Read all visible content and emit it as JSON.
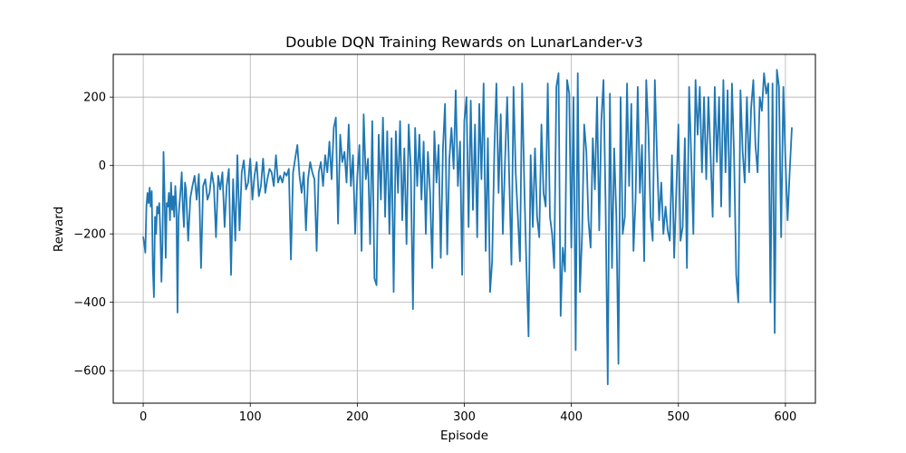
{
  "chart_data": {
    "type": "line",
    "title": "Double DQN Training Rewards on LunarLander-v3",
    "xlabel": "Episode",
    "ylabel": "Reward",
    "xlim": [
      -28,
      628
    ],
    "ylim": [
      -695,
      325
    ],
    "xticks": [
      0,
      100,
      200,
      300,
      400,
      500,
      600
    ],
    "xtick_labels": [
      "0",
      "100",
      "200",
      "300",
      "400",
      "500",
      "600"
    ],
    "yticks": [
      -600,
      -400,
      -200,
      0,
      200
    ],
    "ytick_labels": [
      "−600",
      "−400",
      "−200",
      "0",
      "200"
    ],
    "grid": true,
    "series": [
      {
        "name": "Reward",
        "color": "#1f77b4",
        "keypoints": [
          [
            0,
            -210
          ],
          [
            1,
            -230
          ],
          [
            2,
            -255
          ],
          [
            3,
            -120
          ],
          [
            4,
            -80
          ],
          [
            5,
            -110
          ],
          [
            6,
            -65
          ],
          [
            7,
            -120
          ],
          [
            8,
            -75
          ],
          [
            9,
            -300
          ],
          [
            10,
            -385
          ],
          [
            11,
            -150
          ],
          [
            12,
            -200
          ],
          [
            13,
            -120
          ],
          [
            14,
            -140
          ],
          [
            15,
            -110
          ],
          [
            16,
            -200
          ],
          [
            17,
            -340
          ],
          [
            18,
            -230
          ],
          [
            19,
            40
          ],
          [
            20,
            -90
          ],
          [
            21,
            -270
          ],
          [
            22,
            -110
          ],
          [
            23,
            -120
          ],
          [
            24,
            -80
          ],
          [
            25,
            -160
          ],
          [
            26,
            -50
          ],
          [
            27,
            -130
          ],
          [
            28,
            -90
          ],
          [
            29,
            -150
          ],
          [
            30,
            -60
          ],
          [
            31,
            -120
          ],
          [
            32,
            -430
          ],
          [
            33,
            -150
          ],
          [
            34,
            -110
          ],
          [
            35,
            -70
          ],
          [
            36,
            -20
          ],
          [
            37,
            -120
          ],
          [
            38,
            -180
          ],
          [
            39,
            -50
          ],
          [
            40,
            -70
          ],
          [
            42,
            -220
          ],
          [
            44,
            -95
          ],
          [
            46,
            -60
          ],
          [
            48,
            -30
          ],
          [
            50,
            -100
          ],
          [
            52,
            -25
          ],
          [
            54,
            -300
          ],
          [
            56,
            -60
          ],
          [
            58,
            -40
          ],
          [
            60,
            -100
          ],
          [
            62,
            -80
          ],
          [
            64,
            -20
          ],
          [
            66,
            -60
          ],
          [
            68,
            -210
          ],
          [
            70,
            -30
          ],
          [
            72,
            -70
          ],
          [
            74,
            -20
          ],
          [
            76,
            -180
          ],
          [
            78,
            -60
          ],
          [
            80,
            -10
          ],
          [
            82,
            -320
          ],
          [
            84,
            -40
          ],
          [
            86,
            -220
          ],
          [
            88,
            30
          ],
          [
            90,
            -190
          ],
          [
            92,
            -20
          ],
          [
            94,
            15
          ],
          [
            96,
            -70
          ],
          [
            98,
            -50
          ],
          [
            100,
            20
          ],
          [
            102,
            -100
          ],
          [
            104,
            -30
          ],
          [
            106,
            10
          ],
          [
            108,
            -90
          ],
          [
            110,
            -60
          ],
          [
            112,
            20
          ],
          [
            114,
            -80
          ],
          [
            116,
            -40
          ],
          [
            118,
            -10
          ],
          [
            120,
            -20
          ],
          [
            122,
            -60
          ],
          [
            124,
            30
          ],
          [
            126,
            -50
          ],
          [
            128,
            -30
          ],
          [
            130,
            -50
          ],
          [
            132,
            -20
          ],
          [
            134,
            -30
          ],
          [
            136,
            -10
          ],
          [
            138,
            -275
          ],
          [
            140,
            -20
          ],
          [
            142,
            20
          ],
          [
            144,
            60
          ],
          [
            146,
            -30
          ],
          [
            148,
            -80
          ],
          [
            150,
            -20
          ],
          [
            152,
            -190
          ],
          [
            154,
            -40
          ],
          [
            156,
            10
          ],
          [
            158,
            -20
          ],
          [
            160,
            -40
          ],
          [
            162,
            -250
          ],
          [
            164,
            -20
          ],
          [
            166,
            10
          ],
          [
            168,
            -60
          ],
          [
            170,
            30
          ],
          [
            172,
            -20
          ],
          [
            174,
            70
          ],
          [
            176,
            -40
          ],
          [
            178,
            110
          ],
          [
            180,
            140
          ],
          [
            182,
            -170
          ],
          [
            184,
            90
          ],
          [
            186,
            10
          ],
          [
            188,
            40
          ],
          [
            190,
            -50
          ],
          [
            192,
            120
          ],
          [
            194,
            -60
          ],
          [
            196,
            30
          ],
          [
            198,
            -200
          ],
          [
            200,
            -30
          ],
          [
            202,
            60
          ],
          [
            204,
            -250
          ],
          [
            206,
            150
          ],
          [
            208,
            -40
          ],
          [
            210,
            20
          ],
          [
            212,
            -230
          ],
          [
            214,
            130
          ],
          [
            216,
            -330
          ],
          [
            218,
            -350
          ],
          [
            220,
            90
          ],
          [
            222,
            -100
          ],
          [
            224,
            140
          ],
          [
            226,
            -150
          ],
          [
            228,
            100
          ],
          [
            230,
            -200
          ],
          [
            232,
            80
          ],
          [
            234,
            -370
          ],
          [
            236,
            100
          ],
          [
            238,
            -80
          ],
          [
            240,
            130
          ],
          [
            242,
            -160
          ],
          [
            244,
            50
          ],
          [
            246,
            -230
          ],
          [
            248,
            120
          ],
          [
            250,
            -10
          ],
          [
            252,
            -420
          ],
          [
            254,
            110
          ],
          [
            256,
            -60
          ],
          [
            258,
            90
          ],
          [
            260,
            -100
          ],
          [
            262,
            70
          ],
          [
            264,
            -200
          ],
          [
            266,
            40
          ],
          [
            268,
            -80
          ],
          [
            270,
            -300
          ],
          [
            272,
            100
          ],
          [
            274,
            -50
          ],
          [
            276,
            60
          ],
          [
            278,
            -270
          ],
          [
            280,
            50
          ],
          [
            282,
            180
          ],
          [
            284,
            -260
          ],
          [
            286,
            20
          ],
          [
            288,
            110
          ],
          [
            290,
            -10
          ],
          [
            292,
            220
          ],
          [
            294,
            -60
          ],
          [
            296,
            70
          ],
          [
            298,
            -320
          ],
          [
            300,
            130
          ],
          [
            302,
            200
          ],
          [
            304,
            -180
          ],
          [
            306,
            190
          ],
          [
            308,
            -130
          ],
          [
            310,
            120
          ],
          [
            312,
            -210
          ],
          [
            314,
            180
          ],
          [
            316,
            -40
          ],
          [
            318,
            240
          ],
          [
            320,
            -250
          ],
          [
            322,
            80
          ],
          [
            324,
            -370
          ],
          [
            326,
            -280
          ],
          [
            328,
            40
          ],
          [
            330,
            240
          ],
          [
            332,
            -80
          ],
          [
            334,
            150
          ],
          [
            336,
            -200
          ],
          [
            338,
            10
          ],
          [
            340,
            200
          ],
          [
            342,
            -40
          ],
          [
            344,
            -290
          ],
          [
            346,
            230
          ],
          [
            348,
            -20
          ],
          [
            350,
            -150
          ],
          [
            352,
            -280
          ],
          [
            354,
            240
          ],
          [
            356,
            -60
          ],
          [
            358,
            -290
          ],
          [
            360,
            -500
          ],
          [
            362,
            30
          ],
          [
            364,
            -180
          ],
          [
            366,
            50
          ],
          [
            368,
            -150
          ],
          [
            370,
            -210
          ],
          [
            372,
            120
          ],
          [
            374,
            -80
          ],
          [
            376,
            -120
          ],
          [
            378,
            240
          ],
          [
            380,
            -150
          ],
          [
            382,
            -200
          ],
          [
            384,
            -300
          ],
          [
            386,
            230
          ],
          [
            388,
            270
          ],
          [
            390,
            -440
          ],
          [
            392,
            -240
          ],
          [
            394,
            -310
          ],
          [
            396,
            250
          ],
          [
            398,
            210
          ],
          [
            400,
            -240
          ],
          [
            402,
            200
          ],
          [
            404,
            -540
          ],
          [
            406,
            270
          ],
          [
            408,
            -370
          ],
          [
            410,
            -200
          ],
          [
            412,
            120
          ],
          [
            414,
            40
          ],
          [
            416,
            -160
          ],
          [
            418,
            -240
          ],
          [
            420,
            80
          ],
          [
            422,
            -70
          ],
          [
            424,
            200
          ],
          [
            426,
            -190
          ],
          [
            428,
            130
          ],
          [
            430,
            250
          ],
          [
            432,
            -110
          ],
          [
            434,
            -640
          ],
          [
            436,
            210
          ],
          [
            438,
            -300
          ],
          [
            440,
            50
          ],
          [
            442,
            -150
          ],
          [
            444,
            -580
          ],
          [
            446,
            200
          ],
          [
            448,
            -200
          ],
          [
            450,
            -150
          ],
          [
            452,
            240
          ],
          [
            454,
            -60
          ],
          [
            456,
            180
          ],
          [
            458,
            -250
          ],
          [
            460,
            -100
          ],
          [
            462,
            230
          ],
          [
            464,
            -80
          ],
          [
            466,
            60
          ],
          [
            468,
            -280
          ],
          [
            470,
            250
          ],
          [
            472,
            100
          ],
          [
            474,
            -150
          ],
          [
            476,
            -220
          ],
          [
            478,
            250
          ],
          [
            480,
            20
          ],
          [
            482,
            -160
          ],
          [
            484,
            -50
          ],
          [
            486,
            -200
          ],
          [
            488,
            -120
          ],
          [
            490,
            -190
          ],
          [
            492,
            -220
          ],
          [
            494,
            30
          ],
          [
            496,
            -270
          ],
          [
            498,
            -80
          ],
          [
            500,
            120
          ],
          [
            502,
            -220
          ],
          [
            504,
            -180
          ],
          [
            506,
            80
          ],
          [
            508,
            -300
          ],
          [
            510,
            230
          ],
          [
            512,
            20
          ],
          [
            514,
            -200
          ],
          [
            516,
            250
          ],
          [
            518,
            90
          ],
          [
            520,
            230
          ],
          [
            522,
            -20
          ],
          [
            524,
            200
          ],
          [
            526,
            -40
          ],
          [
            528,
            200
          ],
          [
            530,
            40
          ],
          [
            532,
            -150
          ],
          [
            534,
            230
          ],
          [
            536,
            10
          ],
          [
            538,
            200
          ],
          [
            540,
            -120
          ],
          [
            542,
            250
          ],
          [
            544,
            -20
          ],
          [
            546,
            220
          ],
          [
            548,
            -150
          ],
          [
            550,
            240
          ],
          [
            552,
            30
          ],
          [
            554,
            -320
          ],
          [
            556,
            -400
          ],
          [
            558,
            220
          ],
          [
            560,
            40
          ],
          [
            562,
            -50
          ],
          [
            564,
            200
          ],
          [
            566,
            -20
          ],
          [
            568,
            170
          ],
          [
            570,
            250
          ],
          [
            572,
            60
          ],
          [
            574,
            -20
          ],
          [
            576,
            200
          ],
          [
            578,
            160
          ],
          [
            580,
            270
          ],
          [
            582,
            210
          ],
          [
            584,
            240
          ],
          [
            586,
            -400
          ],
          [
            588,
            240
          ],
          [
            590,
            -490
          ],
          [
            592,
            280
          ],
          [
            594,
            230
          ],
          [
            596,
            -210
          ],
          [
            598,
            230
          ],
          [
            600,
            20
          ],
          [
            602,
            -160
          ],
          [
            604,
            -20
          ],
          [
            606,
            110
          ]
        ]
      }
    ]
  }
}
